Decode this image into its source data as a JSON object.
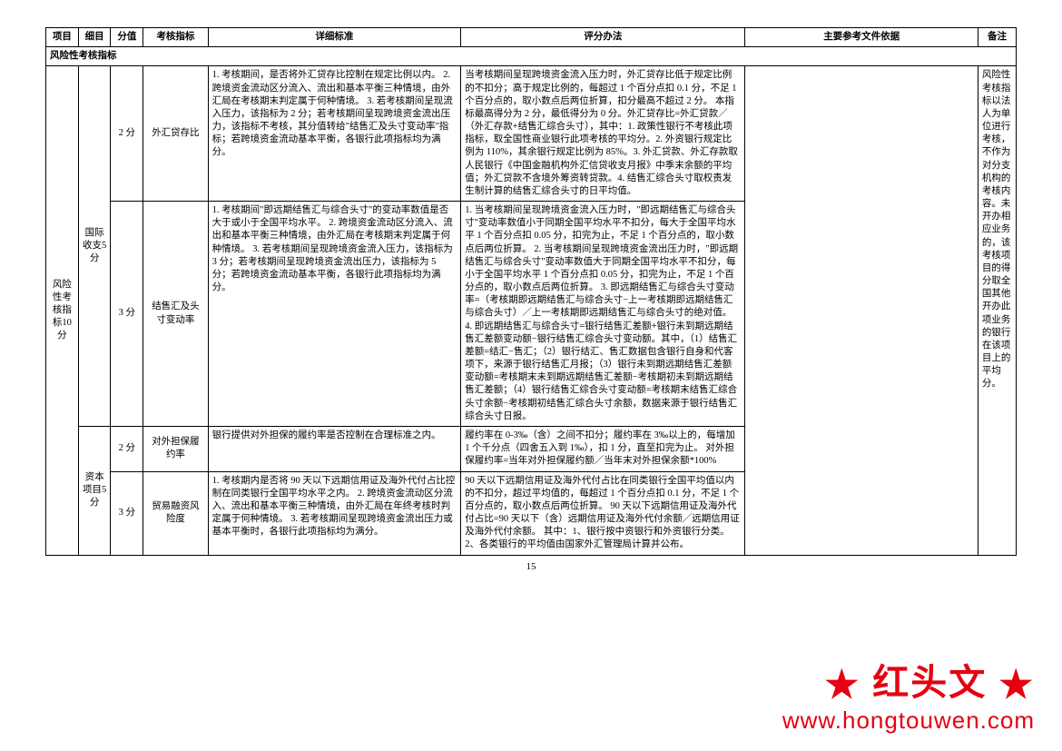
{
  "columns": {
    "project": "项目",
    "subitem": "细目",
    "score": "分值",
    "indicator": "考核指标",
    "detail": "详细标准",
    "method": "评分办法",
    "reference": "主要参考文件依据",
    "note": "备注"
  },
  "section_header": "风险性考核指标",
  "project_label": "风险性考核指标10分",
  "sub1_label": "国际收支5分",
  "sub2_label": "资本项目5分",
  "row1": {
    "score": "2 分",
    "indicator": "外汇贷存比",
    "detail": "1. 考核期间，是否将外汇贷存比控制在规定比例以内。\n2. 跨境资金流动区分流入、流出和基本平衡三种情境，由外汇局在考核期末判定属于何种情境。\n3. 若考核期间呈现流入压力，该指标为 2 分；若考核期间呈现跨境资金流出压力，该指标不考核，其分值转给\"结售汇及头寸变动率\"指标；若跨境资金流动基本平衡，各银行此项指标均为满分。",
    "method": "当考核期间呈现跨境资金流入压力时，外汇贷存比低于规定比例的不扣分；高于规定比例的，每超过 1 个百分点扣 0.1 分，不足 1 个百分点的，取小数点后两位折算，扣分最高不超过 2 分。\n本指标最高得分为 2 分，最低得分为 0 分。外汇贷存比=外汇贷款／（外汇存款+结售汇综合头寸），其中：1. 政策性银行不考核此项指标，取全国性商业银行此项考核的平均分。2. 外资银行规定比例为 110%，其余银行规定比例为 85%。3. 外汇贷款、外汇存款取人民银行《中国金融机构外汇信贷收支月报》中季末余额的平均值；外汇贷款不含境外筹资转贷款。4. 结售汇综合头寸取权责发生制计算的结售汇综合头寸的日平均值。"
  },
  "row2": {
    "score": "3 分",
    "indicator": "结售汇及头寸变动率",
    "detail": "1. 考核期间\"即远期结售汇与综合头寸\"的变动率数值是否大于或小于全国平均水平。\n2. 跨境资金流动区分流入、流出和基本平衡三种情境，由外汇局在考核期末判定属于何种情境。\n3. 若考核期间呈现跨境资金流入压力，该指标为 3 分；若考核期间呈现跨境资金流出压力，该指标为 5 分；若跨境资金流动基本平衡，各银行此项指标均为满分。",
    "method": "1. 当考核期间呈现跨境资金流入压力时，\"即远期结售汇与综合头寸\"变动率数值小于同期全国平均水平不扣分，每大于全国平均水平 1 个百分点扣 0.05 分，扣完为止，不足 1 个百分点的，取小数点后两位折算。\n2. 当考核期间呈现跨境资金流出压力时，\"即远期结售汇与综合头寸\"变动率数值大于同期全国平均水平不扣分，每小于全国平均水平 1 个百分点扣 0.05 分，扣完为止，不足 1 个百分点的，取小数点后两位折算。\n3. 即远期结售汇与综合头寸变动率=（考核期即远期结售汇与综合头寸−上一考核期即远期结售汇与综合头寸）／上一考核期即远期结售汇与综合头寸的绝对值。\n4. 即远期结售汇与综合头寸=银行结售汇差额+银行未到期远期结售汇差额变动额−银行结售汇综合头寸变动额。其中，（1）结售汇差额=结汇−售汇；（2）银行结汇、售汇数据包含银行自身和代客项下，来源于银行结售汇月报；（3）银行未到期远期结售汇差额变动额=考核期末未到期远期结售汇差额−考核期初未到期远期结售汇差额；（4）银行结售汇综合头寸变动额=考核期末结售汇综合头寸余额−考核期初结售汇综合头寸余额，数据来源于银行结售汇综合头寸日报。"
  },
  "row3": {
    "score": "2 分",
    "indicator": "对外担保履约率",
    "detail": "银行提供对外担保的履约率是否控制在合理标准之内。",
    "method": "履约率在 0-3‰（含）之间不扣分；履约率在 3‰以上的，每增加 1 个千分点（四舍五入到 1‰），扣 1 分，直至扣完为止。\n对外担保履约率=当年对外担保履约额／当年末对外担保余额*100%"
  },
  "row4": {
    "score": "3 分",
    "indicator": "贸易融资风险度",
    "detail": "1. 考核期内是否将 90 天以下远期信用证及海外代付占比控制在同类银行全国平均水平之内。\n2. 跨境资金流动区分流入、流出和基本平衡三种情境，由外汇局在年终考核时判定属于何种情境。\n3. 若考核期间呈现跨境资金流出压力或基本平衡时，各银行此项指标均为满分。",
    "method": "90 天以下远期信用证及海外代付占比在同类银行全国平均值以内的不扣分，超过平均值的，每超过 1 个百分点扣 0.1 分，不足 1 个百分点的，取小数点后两位折算。\n90 天以下远期信用证及海外代付占比=90 天以下（含）远期信用证及海外代付余额／远期信用证及海外代付余额。\n其中：1、银行按中资银行和外资银行分类。2、各类银行的平均值由国家外汇管理局计算并公布。"
  },
  "note_text": "风险性考核指标以法人为单位进行考核，不作为对分支机构的考核内容。未开办相应业务的，该考核项目的得分取全国其他开办此项业务的银行在该项目上的平均分。",
  "page_number": "15",
  "watermark": {
    "star": "★",
    "text": "红头文",
    "url": "www.hongtouwen.com",
    "color": "#e60012"
  }
}
